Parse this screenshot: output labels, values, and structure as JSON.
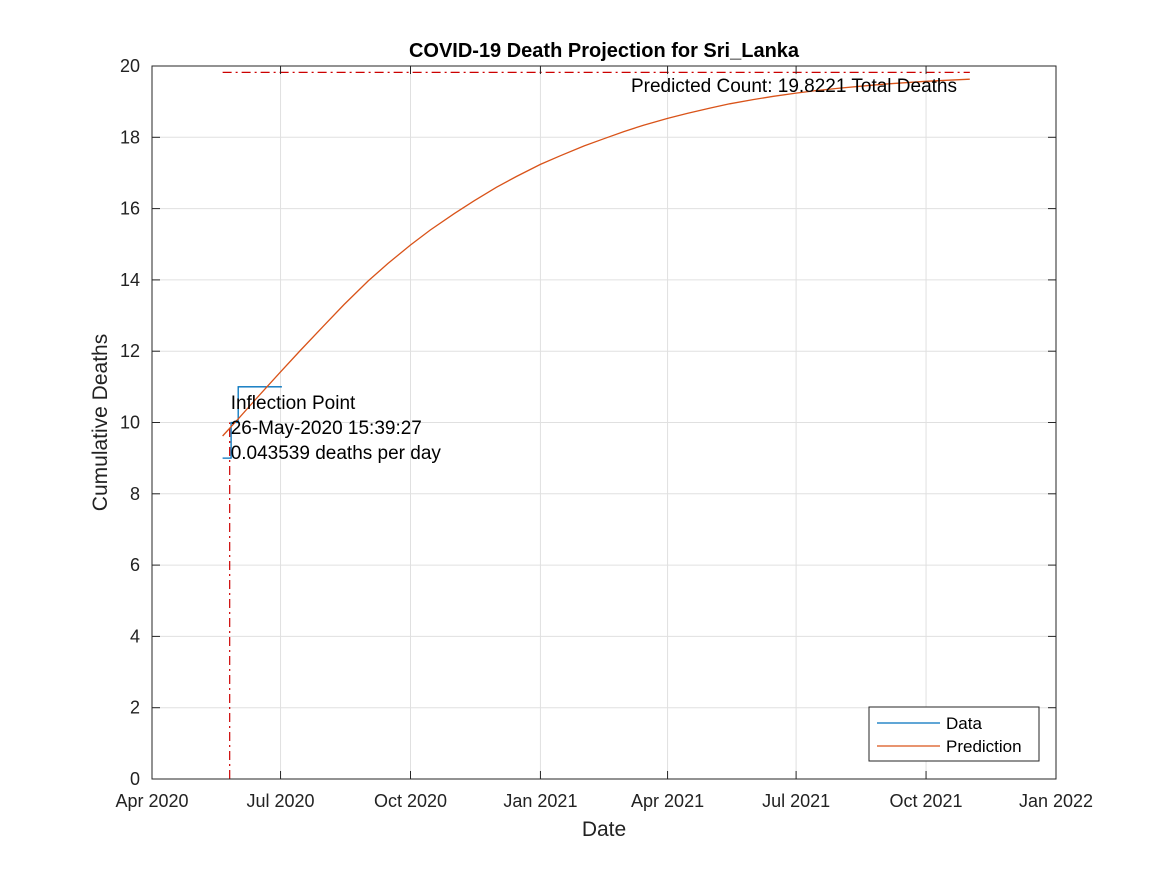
{
  "chart_data": {
    "type": "line",
    "title": "COVID-19 Death Projection for Sri_Lanka",
    "xlabel": "Date",
    "ylabel": "Cumulative Deaths",
    "x_ticks": [
      "2020-04-01",
      "2020-07-01",
      "2020-10-01",
      "2021-01-01",
      "2021-04-01",
      "2021-07-01",
      "2021-10-01",
      "2022-01-01"
    ],
    "x_tick_labels": [
      "Apr 2020",
      "Jul 2020",
      "Oct 2020",
      "Jan 2021",
      "Apr 2021",
      "Jul 2021",
      "Oct 2021",
      "Jan 2022"
    ],
    "xlim": [
      "2020-04-01",
      "2022-01-01"
    ],
    "ylim": [
      0,
      20
    ],
    "y_ticks": [
      0,
      2,
      4,
      6,
      8,
      10,
      12,
      14,
      16,
      18,
      20
    ],
    "y_tick_labels": [
      "0",
      "2",
      "4",
      "6",
      "8",
      "10",
      "12",
      "14",
      "16",
      "18",
      "20"
    ],
    "grid": true,
    "legend_position": "bottom-right",
    "series": [
      {
        "name": "Data",
        "color": "#0072BD",
        "style": "step",
        "x": [
          "2020-05-21",
          "2020-05-27",
          "2020-05-27",
          "2020-06-01",
          "2020-06-01",
          "2020-07-02"
        ],
        "y": [
          9,
          9,
          10,
          10,
          11,
          11
        ]
      },
      {
        "name": "Prediction",
        "color": "#D95319",
        "style": "line",
        "x": [
          "2020-05-21",
          "2020-06-01",
          "2020-06-15",
          "2020-07-01",
          "2020-07-15",
          "2020-08-01",
          "2020-08-15",
          "2020-09-01",
          "2020-09-15",
          "2020-10-01",
          "2020-10-15",
          "2020-11-01",
          "2020-11-15",
          "2020-12-01",
          "2020-12-15",
          "2021-01-01",
          "2021-01-15",
          "2021-02-01",
          "2021-02-15",
          "2021-03-01",
          "2021-03-15",
          "2021-04-01",
          "2021-04-15",
          "2021-05-01",
          "2021-05-15",
          "2021-06-01",
          "2021-06-15",
          "2021-07-01",
          "2021-07-15",
          "2021-08-01",
          "2021-08-15",
          "2021-09-01",
          "2021-09-15",
          "2021-10-01",
          "2021-10-15",
          "2021-11-01"
        ],
        "y": [
          9.62,
          10.1,
          10.72,
          11.42,
          12.02,
          12.73,
          13.31,
          13.97,
          14.46,
          14.98,
          15.4,
          15.86,
          16.22,
          16.6,
          16.9,
          17.24,
          17.48,
          17.76,
          17.96,
          18.16,
          18.34,
          18.53,
          18.67,
          18.82,
          18.94,
          19.06,
          19.15,
          19.24,
          19.31,
          19.38,
          19.43,
          19.49,
          19.53,
          19.57,
          19.6,
          19.63
        ]
      }
    ],
    "reference_lines": [
      {
        "orientation": "horizontal",
        "y": 19.8221,
        "x_from": "2020-05-21",
        "x_to": "2021-11-01",
        "color": "#CC0000",
        "style": "dash-dot"
      },
      {
        "orientation": "vertical",
        "x": "2020-05-26",
        "y_from": 0,
        "y_to": 10,
        "color": "#CC0000",
        "style": "dash-dot"
      }
    ],
    "annotations": {
      "predicted_count": "Predicted Count: 19.8221 Total Deaths",
      "inflection_title": "Inflection Point",
      "inflection_date": "26-May-2020 15:39:27",
      "inflection_rate": "0.043539 deaths per day"
    },
    "colors": {
      "axis": "#262626",
      "grid": "#E0E0E0",
      "reference": "#CC0000"
    }
  }
}
